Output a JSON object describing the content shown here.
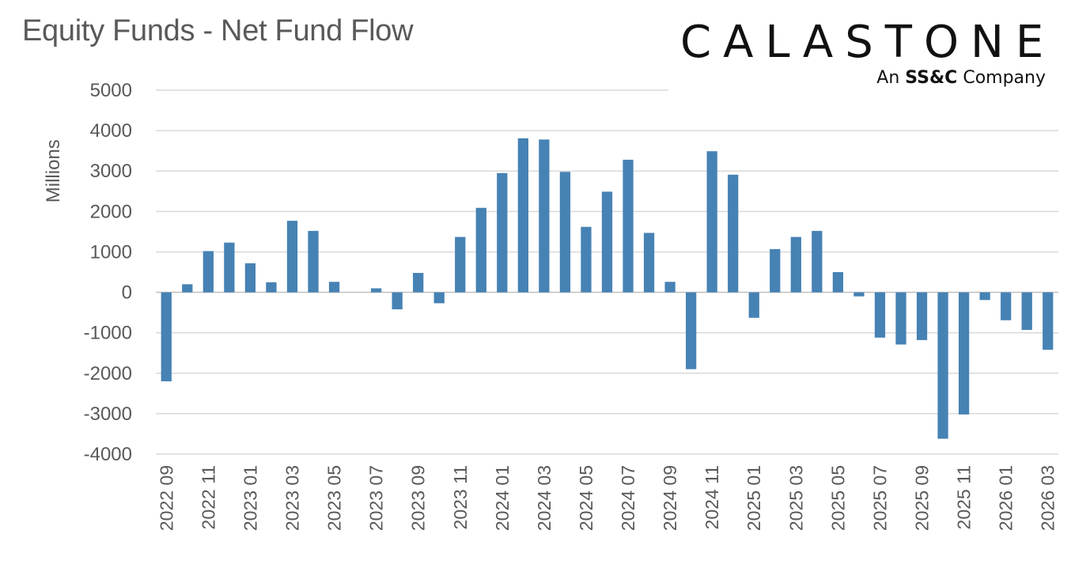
{
  "title": "Equity Funds - Net Fund Flow",
  "logo": {
    "wordmark": "CALASTONE",
    "tagline_prefix": "An ",
    "tagline_bold": "SS&C",
    "tagline_suffix": " Company"
  },
  "colors": {
    "bar": "#4682b4",
    "grid": "#d9d9d9",
    "text": "#595959"
  },
  "chart_data": {
    "type": "bar",
    "title": "Equity Funds - Net Fund Flow",
    "xlabel": "",
    "ylabel": "Millions",
    "ylim": [
      -4000,
      5000
    ],
    "yticks": [
      5000,
      4000,
      3000,
      2000,
      1000,
      0,
      -1000,
      -2000,
      -3000,
      -4000
    ],
    "grid": true,
    "legend": "none",
    "categories": [
      "2022 09",
      "2022 10",
      "2022 11",
      "2022 12",
      "2023 01",
      "2023 02",
      "2023 03",
      "2023 04",
      "2023 05",
      "2023 06",
      "2023 07",
      "2023 08",
      "2023 09",
      "2023 10",
      "2023 11",
      "2023 12",
      "2024 01",
      "2024 02",
      "2024 03",
      "2024 04",
      "2024 05",
      "2024 06",
      "2024 07",
      "2024 08",
      "2024 09",
      "2024 10",
      "2024 11",
      "2024 12",
      "2025 01",
      "2025 02",
      "2025 03",
      "2025 04",
      "2025 05",
      "2025 06",
      "2025 07",
      "2025 08",
      "2025 09",
      "2025 10",
      "2025 11",
      "2025 12",
      "2026 01",
      "2026 02",
      "2026 03"
    ],
    "tick_labels": [
      "2022 09",
      "2022 11",
      "2023 01",
      "2023 03",
      "2023 05",
      "2023 07",
      "2023 09",
      "2023 11",
      "2024 01",
      "2024 03",
      "2024 05",
      "2024 07",
      "2024 09",
      "2024 11",
      "2025 01",
      "2025 03",
      "2025 05",
      "2025 07",
      "2025 09",
      "2025 11",
      "2026 01",
      "2026 03"
    ],
    "values": [
      -2200,
      200,
      1020,
      1230,
      720,
      250,
      1770,
      1520,
      260,
      0,
      100,
      -420,
      480,
      -270,
      1370,
      2090,
      2950,
      3810,
      3780,
      2980,
      1620,
      2490,
      3280,
      1470,
      260,
      -1900,
      3490,
      2910,
      -630,
      1070,
      1370,
      1520,
      500,
      -100,
      -1120,
      -1290,
      -1180,
      -3620,
      -3020,
      -190,
      -690,
      -930,
      -1420
    ]
  }
}
